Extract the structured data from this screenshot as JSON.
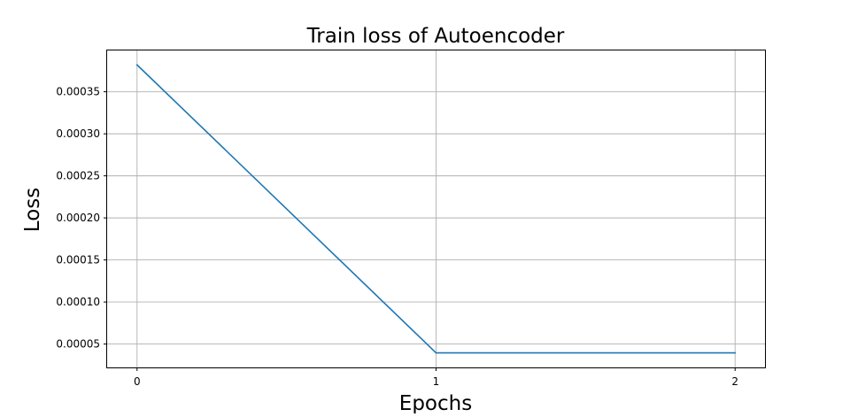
{
  "chart_data": {
    "type": "line",
    "title": "Train loss of Autoencoder",
    "xlabel": "Epochs",
    "ylabel": "Loss",
    "x": [
      0,
      1,
      2
    ],
    "series": [
      {
        "values": [
          0.000382,
          3.95e-05,
          3.95e-05
        ],
        "color": "#1f77b4"
      }
    ],
    "xlim": [
      -0.1,
      2.1
    ],
    "ylim": [
      2.22e-05,
      0.0003991
    ],
    "xticks": [
      0,
      1,
      2
    ],
    "xtick_labels": [
      "0",
      "1",
      "2"
    ],
    "yticks": [
      5e-05,
      0.0001,
      0.00015,
      0.0002,
      0.00025,
      0.0003,
      0.00035
    ],
    "ytick_labels": [
      "0.00005",
      "0.00010",
      "0.00015",
      "0.00020",
      "0.00025",
      "0.00030",
      "0.00035"
    ],
    "grid": true
  }
}
